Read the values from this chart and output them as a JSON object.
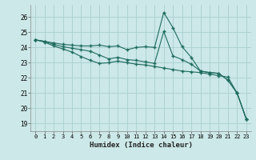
{
  "xlabel": "Humidex (Indice chaleur)",
  "bg_color": "#cce8e8",
  "grid_color": "#aacfcf",
  "line_color": "#1e6b5e",
  "xlim": [
    -0.5,
    23.5
  ],
  "ylim": [
    18.5,
    26.8
  ],
  "yticks": [
    19,
    20,
    21,
    22,
    23,
    24,
    25,
    26
  ],
  "xticks": [
    0,
    1,
    2,
    3,
    4,
    5,
    6,
    7,
    8,
    9,
    10,
    11,
    12,
    13,
    14,
    15,
    16,
    17,
    18,
    19,
    20,
    21,
    22,
    23
  ],
  "line1_x": [
    0,
    1,
    2,
    3,
    4,
    5,
    6,
    7,
    8,
    9,
    10,
    11,
    12,
    13,
    14,
    15,
    16,
    17,
    18,
    19,
    20,
    21,
    22,
    23
  ],
  "line1_y": [
    24.5,
    24.4,
    24.3,
    24.2,
    24.15,
    24.1,
    24.1,
    24.15,
    24.05,
    24.1,
    23.85,
    24.0,
    24.05,
    24.0,
    26.3,
    25.3,
    24.05,
    23.35,
    22.45,
    22.35,
    22.3,
    21.85,
    21.0,
    19.3
  ],
  "line2_x": [
    0,
    1,
    2,
    3,
    4,
    5,
    6,
    7,
    8,
    9,
    10,
    11,
    12,
    13,
    14,
    15,
    16,
    17,
    18,
    19,
    20,
    21,
    22,
    23
  ],
  "line2_y": [
    24.5,
    24.4,
    24.2,
    24.05,
    23.95,
    23.85,
    23.75,
    23.5,
    23.25,
    23.35,
    23.2,
    23.15,
    23.05,
    22.95,
    25.05,
    23.45,
    23.2,
    22.9,
    22.45,
    22.35,
    22.3,
    21.85,
    21.0,
    19.3
  ],
  "line3_x": [
    0,
    1,
    2,
    3,
    4,
    5,
    6,
    7,
    8,
    9,
    10,
    11,
    12,
    13,
    14,
    15,
    16,
    17,
    18,
    19,
    20,
    21,
    22,
    23
  ],
  "line3_y": [
    24.5,
    24.35,
    24.1,
    23.9,
    23.7,
    23.4,
    23.15,
    22.95,
    23.0,
    23.1,
    23.0,
    22.9,
    22.85,
    22.75,
    22.65,
    22.55,
    22.45,
    22.4,
    22.35,
    22.25,
    22.15,
    22.05,
    21.0,
    19.3
  ]
}
